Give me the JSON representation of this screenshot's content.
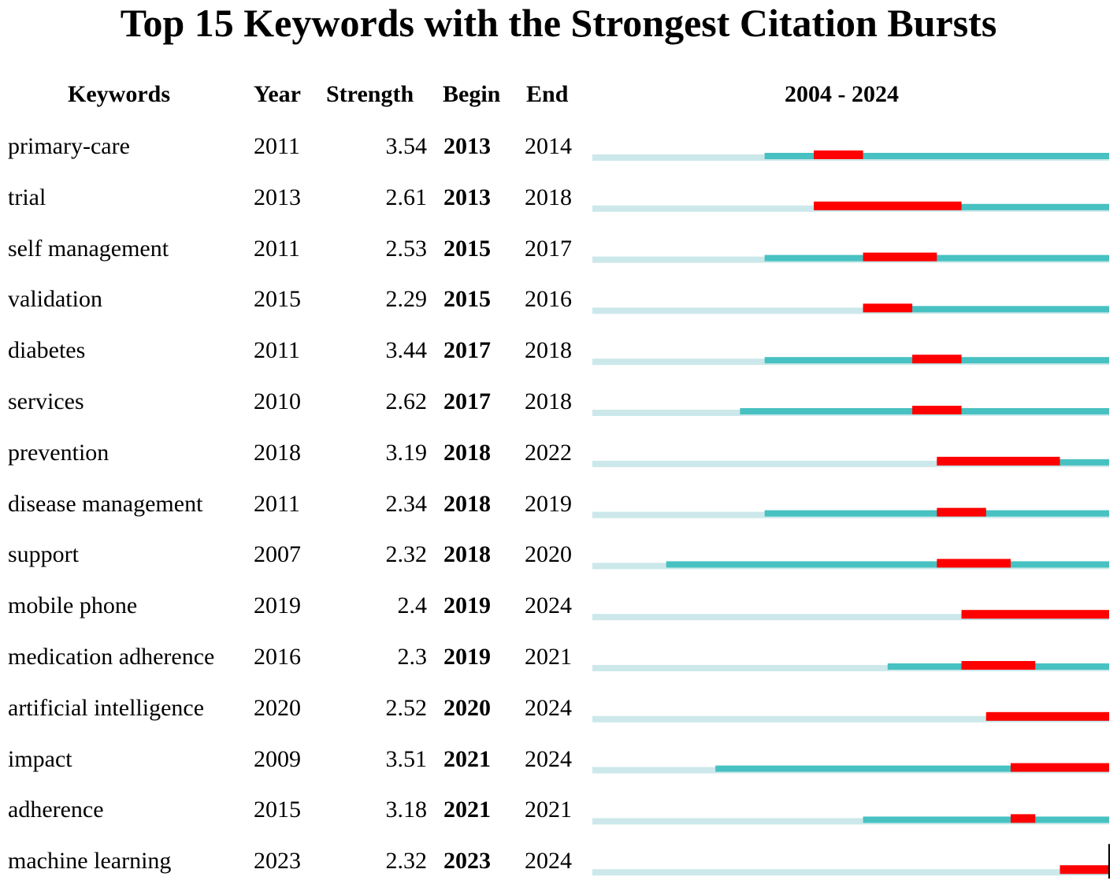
{
  "title": "Top 15 Keywords with the Strongest Citation Bursts",
  "headers": {
    "keywords": "Keywords",
    "year": "Year",
    "strength": "Strength",
    "begin": "Begin",
    "end": "End",
    "range": "2004 - 2024"
  },
  "colors": {
    "background_line": "#cce8ea",
    "active_line": "#47c1c1",
    "burst": "#ff0000"
  },
  "chart_data": {
    "type": "table",
    "timeline": {
      "start": 2004,
      "end": 2024
    },
    "columns": [
      "Keywords",
      "Year",
      "Strength",
      "Begin",
      "End"
    ],
    "rows": [
      {
        "keyword": "primary-care",
        "year": "2011",
        "strength": "3.54",
        "begin": "2013",
        "end": "2014"
      },
      {
        "keyword": "trial",
        "year": "2013",
        "strength": "2.61",
        "begin": "2013",
        "end": "2018"
      },
      {
        "keyword": "self management",
        "year": "2011",
        "strength": "2.53",
        "begin": "2015",
        "end": "2017"
      },
      {
        "keyword": "validation",
        "year": "2015",
        "strength": "2.29",
        "begin": "2015",
        "end": "2016"
      },
      {
        "keyword": "diabetes",
        "year": "2011",
        "strength": "3.44",
        "begin": "2017",
        "end": "2018"
      },
      {
        "keyword": "services",
        "year": "2010",
        "strength": "2.62",
        "begin": "2017",
        "end": "2018"
      },
      {
        "keyword": "prevention",
        "year": "2018",
        "strength": "3.19",
        "begin": "2018",
        "end": "2022"
      },
      {
        "keyword": "disease management",
        "year": "2011",
        "strength": "2.34",
        "begin": "2018",
        "end": "2019"
      },
      {
        "keyword": "support",
        "year": "2007",
        "strength": "2.32",
        "begin": "2018",
        "end": "2020"
      },
      {
        "keyword": "mobile phone",
        "year": "2019",
        "strength": "2.4",
        "begin": "2019",
        "end": "2024"
      },
      {
        "keyword": "medication adherence",
        "year": "2016",
        "strength": "2.3",
        "begin": "2019",
        "end": "2021"
      },
      {
        "keyword": "artificial intelligence",
        "year": "2020",
        "strength": "2.52",
        "begin": "2020",
        "end": "2024"
      },
      {
        "keyword": "impact",
        "year": "2009",
        "strength": "3.51",
        "begin": "2021",
        "end": "2024"
      },
      {
        "keyword": "adherence",
        "year": "2015",
        "strength": "3.18",
        "begin": "2021",
        "end": "2021"
      },
      {
        "keyword": "machine learning",
        "year": "2023",
        "strength": "2.32",
        "begin": "2023",
        "end": "2024"
      }
    ]
  }
}
